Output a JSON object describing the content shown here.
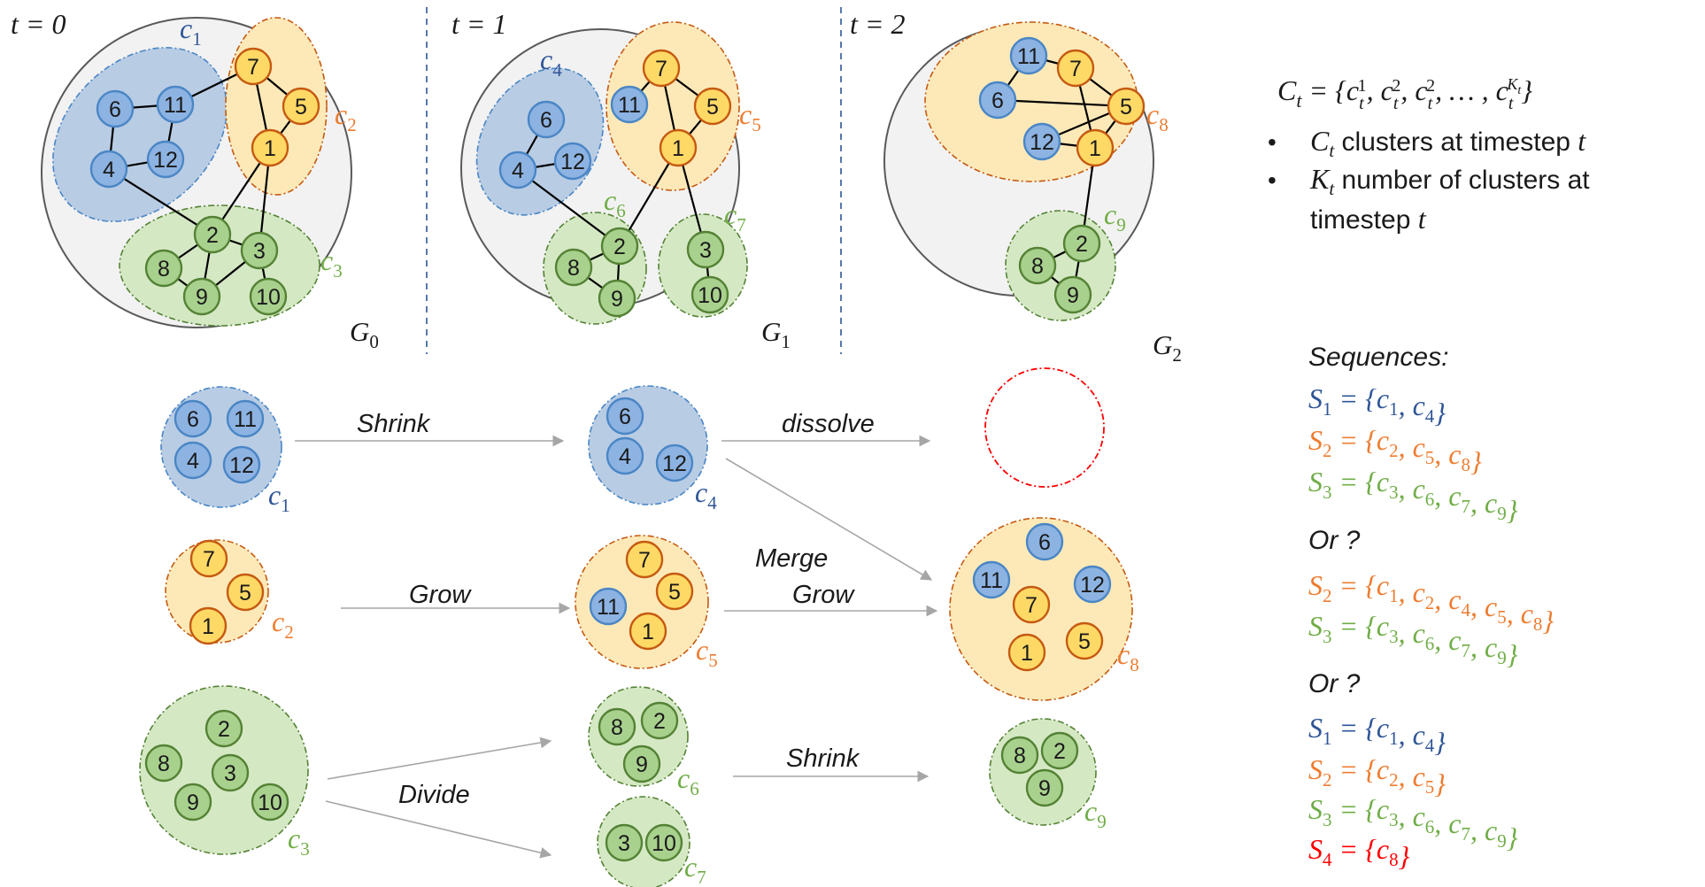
{
  "colors": {
    "blue_fill": "#b8cce4",
    "blue_node": "#8db3e2",
    "blue_stroke": "#4a86c5",
    "blue_text": "#2f5597",
    "orange_fill": "#fde9b8",
    "orange_node": "#ffd966",
    "orange_stroke": "#c55a11",
    "orange_text": "#ed7d31",
    "green_fill": "#d5e8c4",
    "green_node": "#a9d18e",
    "green_stroke": "#548235",
    "green_text": "#70ad47",
    "red": "#ff0000"
  },
  "timesteps": [
    {
      "t_label": "t = 0",
      "graph": "G",
      "graph_sub": "0"
    },
    {
      "t_label": "t = 1",
      "graph": "G",
      "graph_sub": "1"
    },
    {
      "t_label": "t = 2",
      "graph": "G",
      "graph_sub": "2"
    }
  ],
  "cluster_labels": [
    {
      "id": "c1",
      "name": "c",
      "sub": "1",
      "color": "blue"
    },
    {
      "id": "c2",
      "name": "c",
      "sub": "2",
      "color": "orange"
    },
    {
      "id": "c3",
      "name": "c",
      "sub": "3",
      "color": "green"
    },
    {
      "id": "c4",
      "name": "c",
      "sub": "4",
      "color": "blue"
    },
    {
      "id": "c5",
      "name": "c",
      "sub": "5",
      "color": "orange"
    },
    {
      "id": "c6",
      "name": "c",
      "sub": "6",
      "color": "green"
    },
    {
      "id": "c7",
      "name": "c",
      "sub": "7",
      "color": "green"
    },
    {
      "id": "c8",
      "name": "c",
      "sub": "8",
      "color": "orange"
    },
    {
      "id": "c9",
      "name": "c",
      "sub": "9",
      "color": "green"
    }
  ],
  "nodes": [
    "1",
    "2",
    "3",
    "4",
    "5",
    "6",
    "7",
    "8",
    "9",
    "10",
    "11",
    "12"
  ],
  "operations": {
    "shrink1": "Shrink",
    "dissolve": "dissolve",
    "grow": "Grow",
    "merge": "Merge",
    "grow2": "Grow",
    "divide": "Divide",
    "shrink2": "Shrink"
  },
  "definitions": {
    "formula": "C_t = {c_t^1, c_t^2, c_t^2, …, c_t^{K_t}}",
    "bullet1_sym": "C",
    "bullet1_text": " clusters at timestep ",
    "bullet2_sym": "K",
    "bullet2_text_line1": " number of clusters at",
    "bullet2_text_line2": "timestep ",
    "t": "t"
  },
  "sequences": {
    "heading": "Sequences:",
    "or1": "Or ?",
    "or2": "Or ?",
    "group1": [
      {
        "label": "S",
        "sub": "1",
        "members": [
          "1",
          "4"
        ],
        "color": "blue"
      },
      {
        "label": "S",
        "sub": "2",
        "members": [
          "2",
          "5",
          "8"
        ],
        "color": "orange"
      },
      {
        "label": "S",
        "sub": "3",
        "members": [
          "3",
          "6",
          "7",
          "9"
        ],
        "color": "green"
      }
    ],
    "group2": [
      {
        "label": "S",
        "sub": "2",
        "members": [
          "1",
          "2",
          "4",
          "5",
          "8"
        ],
        "color": "orange"
      },
      {
        "label": "S",
        "sub": "3",
        "members": [
          "3",
          "6",
          "7",
          "9"
        ],
        "color": "green"
      }
    ],
    "group3": [
      {
        "label": "S",
        "sub": "1",
        "members": [
          "1",
          "4"
        ],
        "color": "blue"
      },
      {
        "label": "S",
        "sub": "2",
        "members": [
          "2",
          "5"
        ],
        "color": "orange"
      },
      {
        "label": "S",
        "sub": "3",
        "members": [
          "3",
          "6",
          "7",
          "9"
        ],
        "color": "green"
      },
      {
        "label": "S",
        "sub": "4",
        "members": [
          "8"
        ],
        "color": "red"
      }
    ]
  }
}
